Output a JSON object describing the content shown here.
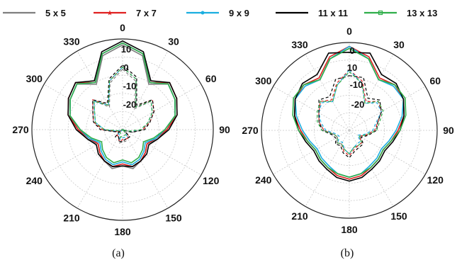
{
  "chart_data": [
    {
      "type": "polar-line",
      "caption": "(a)",
      "angle_ticks": [
        "0",
        "30",
        "60",
        "90",
        "120",
        "150",
        "180",
        "210",
        "240",
        "270",
        "300",
        "330"
      ],
      "radial_ticks": [
        "10",
        "0",
        "-10",
        "-20"
      ],
      "rlim": [
        -30,
        15
      ],
      "grid": true,
      "series": [
        {
          "name": "5 x 5",
          "color": "#7f7f7f",
          "co_pol": {
            "theta": [
              0,
              15,
              30,
              45,
              60,
              75,
              90,
              105,
              120,
              135,
              150,
              165,
              180,
              195,
              210,
              225,
              240,
              255,
              270,
              285,
              300,
              315,
              330,
              345
            ],
            "r": [
              12,
              8,
              -4,
              2,
              0,
              -3,
              -8,
              -12,
              -16,
              -14,
              -12,
              -10,
              -12,
              -10,
              -12,
              -14,
              -16,
              -12,
              -8,
              -3,
              0,
              2,
              -4,
              8
            ]
          }
        },
        {
          "name": "7 x 7",
          "color": "#e02020",
          "co_pol": {
            "theta": [
              0,
              15,
              30,
              45,
              60,
              75,
              90,
              105,
              120,
              135,
              150,
              165,
              180,
              195,
              210,
              225,
              240,
              255,
              270,
              285,
              300,
              315,
              330,
              345
            ],
            "r": [
              13,
              9,
              -3,
              3,
              1,
              -2,
              -8,
              -13,
              -16,
              -14,
              -12,
              -11,
              -13,
              -11,
              -12,
              -14,
              -16,
              -13,
              -8,
              -2,
              1,
              3,
              -3,
              9
            ]
          }
        },
        {
          "name": "9 x 9",
          "color": "#1aaee0",
          "co_pol": {
            "theta": [
              0,
              15,
              30,
              45,
              60,
              75,
              90,
              105,
              120,
              135,
              150,
              165,
              180,
              195,
              210,
              225,
              240,
              255,
              270,
              285,
              300,
              315,
              330,
              345
            ],
            "r": [
              13,
              9,
              -3,
              2,
              0,
              -3,
              -9,
              -13,
              -17,
              -15,
              -13,
              -12,
              -14,
              -12,
              -13,
              -15,
              -17,
              -13,
              -9,
              -3,
              0,
              2,
              -3,
              9
            ]
          }
        },
        {
          "name": "11 x 11",
          "color": "#000000",
          "co_pol": {
            "theta": [
              0,
              15,
              30,
              45,
              60,
              75,
              90,
              105,
              120,
              135,
              150,
              165,
              180,
              195,
              210,
              225,
              240,
              255,
              270,
              285,
              300,
              315,
              330,
              345
            ],
            "r": [
              14,
              10,
              -2,
              3,
              1,
              -2,
              -7,
              -12,
              -15,
              -13,
              -12,
              -11,
              -12,
              -11,
              -12,
              -13,
              -15,
              -12,
              -7,
              -2,
              1,
              3,
              -2,
              10
            ]
          }
        },
        {
          "name": "13 x 13",
          "color": "#2fae4a",
          "co_pol": {
            "theta": [
              0,
              15,
              30,
              45,
              60,
              75,
              90,
              105,
              120,
              135,
              150,
              165,
              180,
              195,
              210,
              225,
              240,
              255,
              270,
              285,
              300,
              315,
              330,
              345
            ],
            "r": [
              13,
              9,
              -3,
              2,
              0,
              -3,
              -9,
              -14,
              -18,
              -16,
              -14,
              -13,
              -15,
              -13,
              -14,
              -16,
              -18,
              -14,
              -9,
              -3,
              0,
              2,
              -3,
              9
            ]
          }
        }
      ]
    },
    {
      "type": "polar-line",
      "caption": "(b)",
      "angle_ticks": [
        "0",
        "30",
        "60",
        "90",
        "120",
        "150",
        "180",
        "210",
        "240",
        "270",
        "300",
        "330"
      ],
      "radial_ticks": [
        "0",
        "10",
        "-10",
        "-20"
      ],
      "rlim": [
        -30,
        15
      ],
      "grid": true,
      "series": [
        {
          "name": "5 x 5",
          "color": "#7f7f7f",
          "co_pol": {
            "theta": [
              0,
              15,
              30,
              45,
              60,
              75,
              90,
              105,
              120,
              135,
              150,
              165,
              180,
              195,
              210,
              225,
              240,
              255,
              270,
              285,
              300,
              315,
              330,
              345
            ],
            "r": [
              12,
              8,
              0,
              3,
              2,
              -1,
              -5,
              -8,
              -10,
              -9,
              -8,
              -7,
              -6,
              -7,
              -8,
              -9,
              -10,
              -8,
              -5,
              -1,
              2,
              3,
              0,
              8
            ]
          }
        },
        {
          "name": "7 x 7",
          "color": "#e02020",
          "co_pol": {
            "theta": [
              0,
              15,
              30,
              45,
              60,
              75,
              90,
              105,
              120,
              135,
              150,
              165,
              180,
              195,
              210,
              225,
              240,
              255,
              270,
              285,
              300,
              315,
              330,
              345
            ],
            "r": [
              13,
              9,
              1,
              3,
              2,
              -1,
              -5,
              -8,
              -10,
              -9,
              -8,
              -6,
              -5,
              -6,
              -8,
              -9,
              -10,
              -8,
              -5,
              -1,
              2,
              3,
              1,
              9
            ]
          }
        },
        {
          "name": "9 x 9",
          "color": "#1aaee0",
          "co_pol": {
            "theta": [
              0,
              15,
              30,
              45,
              60,
              75,
              90,
              105,
              120,
              135,
              150,
              165,
              180,
              195,
              210,
              225,
              240,
              255,
              270,
              285,
              300,
              315,
              330,
              345
            ],
            "r": [
              13,
              8,
              0,
              2,
              2,
              -2,
              -6,
              -9,
              -11,
              -10,
              -9,
              -7,
              -6,
              -7,
              -9,
              -10,
              -11,
              -9,
              -6,
              -2,
              2,
              2,
              0,
              8
            ]
          }
        },
        {
          "name": "11 x 11",
          "color": "#000000",
          "co_pol": {
            "theta": [
              0,
              15,
              30,
              45,
              60,
              75,
              90,
              105,
              120,
              135,
              150,
              165,
              180,
              195,
              210,
              225,
              240,
              255,
              270,
              285,
              300,
              315,
              330,
              345
            ],
            "r": [
              10,
              11,
              3,
              4,
              2,
              -1,
              -4,
              -7,
              -9,
              -8,
              -7,
              -5,
              -4,
              -5,
              -7,
              -8,
              -9,
              -7,
              -4,
              -1,
              2,
              4,
              3,
              11
            ]
          }
        },
        {
          "name": "13 x 13",
          "color": "#2fae4a",
          "co_pol": {
            "theta": [
              0,
              15,
              30,
              45,
              60,
              75,
              90,
              105,
              120,
              135,
              150,
              165,
              180,
              195,
              210,
              225,
              240,
              255,
              270,
              285,
              300,
              315,
              330,
              345
            ],
            "r": [
              12,
              8,
              0,
              3,
              3,
              0,
              -4,
              -8,
              -10,
              -9,
              -8,
              -7,
              -6,
              -7,
              -8,
              -9,
              -10,
              -8,
              -4,
              0,
              3,
              3,
              0,
              8
            ]
          }
        }
      ]
    }
  ],
  "legend": [
    {
      "label": "5 x 5",
      "color": "#7f7f7f",
      "marker": "none"
    },
    {
      "label": "7 x 7",
      "color": "#e02020",
      "marker": "star"
    },
    {
      "label": "9 x 9",
      "color": "#1aaee0",
      "marker": "dot"
    },
    {
      "label": "11 x 11",
      "color": "#000000",
      "marker": "none"
    },
    {
      "label": "13 x 13",
      "color": "#2fae4a",
      "marker": "square"
    }
  ]
}
